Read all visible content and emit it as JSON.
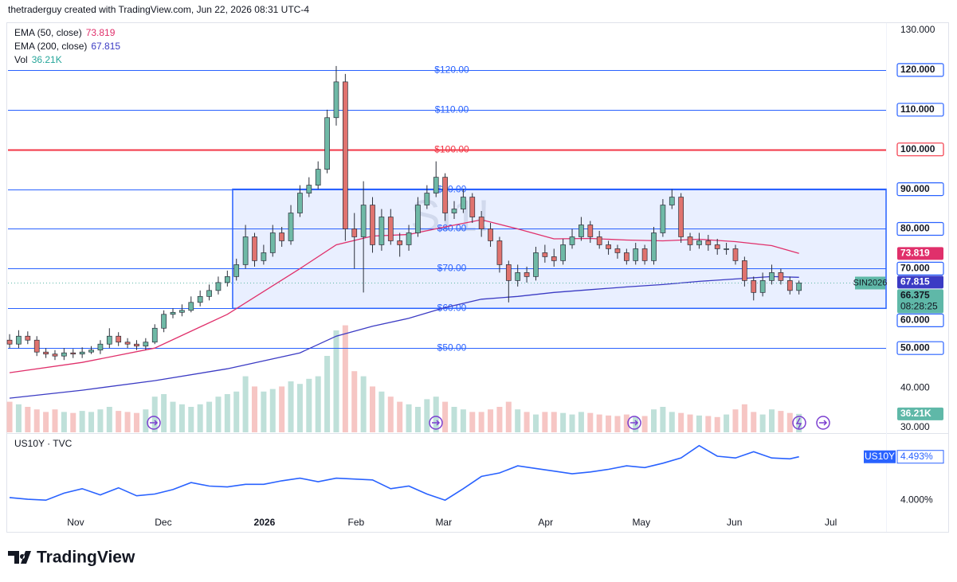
{
  "header": "thetraderguy created with TradingView.com, Jun 22, 2026 08:31 UTC-4",
  "footer": {
    "brand": "TradingView"
  },
  "chart_data": [
    {
      "type": "candlestick",
      "watermark": "SI1!",
      "ticker": "SIN2026",
      "countdown": "08:28:25",
      "up_color": "#6fb9a6",
      "down_color": "#e0736f",
      "wick_color": "#2a2e39",
      "volume_up_color": "#bfe0d9",
      "volume_down_color": "#f6c6c4",
      "volume_tag_color": "#5fb8a8",
      "xlim": [
        -0.18,
        96.6
      ],
      "xticks": [
        {
          "value": 7.28,
          "label": "Nov"
        },
        {
          "value": 16.94,
          "label": "Dec"
        },
        {
          "value": 28.09,
          "label": "2026"
        },
        {
          "value": 38.19,
          "label": "Feb"
        },
        {
          "value": 47.84,
          "label": "Mar"
        },
        {
          "value": 59.08,
          "label": "Apr"
        },
        {
          "value": 69.62,
          "label": "May"
        },
        {
          "value": 79.89,
          "label": "Jun"
        },
        {
          "value": 90.51,
          "label": "Jul"
        }
      ],
      "ylim": [
        28.8,
        131.8
      ],
      "yticks": [
        {
          "value": 130,
          "label": "130.000"
        },
        {
          "value": 120,
          "label": "120.000"
        },
        {
          "value": 110,
          "label": "110.000"
        },
        {
          "value": 100,
          "label": "100.000"
        },
        {
          "value": 90,
          "label": "90.000"
        },
        {
          "value": 80,
          "label": "80.000"
        },
        {
          "value": 70,
          "label": "70.000"
        },
        {
          "value": 60,
          "label": "60.000"
        },
        {
          "value": 50,
          "label": "50.000"
        },
        {
          "value": 40,
          "label": "40.000"
        },
        {
          "value": 30,
          "label": "30.000"
        }
      ],
      "grid": false,
      "hlines": [
        {
          "value": 120,
          "label": "$120.00",
          "color": "#2962ff"
        },
        {
          "value": 110,
          "label": "$110.00",
          "color": "#2962ff"
        },
        {
          "value": 100,
          "label": "$100.00",
          "color": "#f23645"
        },
        {
          "value": 90,
          "label": "$90.00",
          "color": "#2962ff"
        },
        {
          "value": 80,
          "label": "$80.00",
          "color": "#2962ff"
        },
        {
          "value": 70,
          "label": "$70.00",
          "color": "#2962ff"
        },
        {
          "value": 60,
          "label": "$60.00",
          "color": "#2962ff"
        },
        {
          "value": 50,
          "label": "$50.00",
          "color": "#2962ff"
        }
      ],
      "box": {
        "x": [
          24.58,
          96.6
        ],
        "y": [
          60,
          90
        ],
        "color": "#2962ff"
      },
      "open": [
        52,
        51,
        53,
        52,
        49,
        48.5,
        48,
        48.8,
        48.5,
        49,
        49.5,
        51,
        53,
        51.5,
        51,
        50.5,
        51.5,
        55,
        58.5,
        59,
        59.5,
        61.5,
        63,
        64.5,
        66.5,
        68,
        71,
        78,
        72,
        74,
        79,
        77,
        84,
        89,
        91,
        95,
        108,
        117,
        80,
        78,
        86,
        76,
        83,
        77,
        76,
        79,
        86,
        89,
        93,
        84,
        85,
        88,
        83,
        80,
        77,
        71,
        67,
        69,
        68,
        74,
        73,
        72,
        76,
        78,
        81,
        78,
        76,
        75,
        74,
        72,
        75,
        72,
        79,
        86,
        88,
        78,
        76,
        77,
        76,
        75,
        75,
        72,
        67,
        64,
        67,
        69,
        67,
        64.5
      ],
      "high": [
        53.5,
        54.5,
        54.2,
        53,
        50,
        49.5,
        50,
        49.8,
        50.2,
        50.5,
        52,
        55,
        54,
        52.5,
        52,
        52.5,
        56,
        59.5,
        60,
        61,
        63,
        64.5,
        66,
        68,
        69.5,
        72.5,
        81,
        79,
        76,
        81,
        80.5,
        86,
        91,
        93,
        97,
        110,
        121,
        119,
        84,
        92,
        88,
        85,
        85,
        79,
        81,
        88,
        91,
        97,
        94,
        87,
        90,
        89,
        84.5,
        81.5,
        78,
        72,
        71,
        70.5,
        75.5,
        76,
        75,
        77.5,
        80,
        83,
        82,
        79.5,
        77,
        76,
        75,
        76.5,
        76,
        80.5,
        87.5,
        90,
        89,
        79,
        79,
        78.5,
        77.5,
        76.5,
        76,
        73,
        68,
        69,
        71,
        70,
        68,
        67
      ],
      "low": [
        50,
        50,
        51,
        48,
        47.5,
        47,
        47,
        47.5,
        47.5,
        48.5,
        48.5,
        50,
        50.5,
        50,
        49.5,
        49.5,
        51,
        54,
        57.5,
        58,
        59,
        60.5,
        62,
        63.5,
        65.5,
        67,
        70,
        70.5,
        71,
        73,
        75.5,
        76,
        83,
        88,
        90,
        94,
        106,
        77,
        70,
        64,
        74,
        74.5,
        76,
        73,
        74.5,
        78,
        85,
        88,
        82,
        82.5,
        84,
        81.5,
        78,
        75.5,
        69,
        61.5,
        65.5,
        66.5,
        67,
        71.5,
        70.5,
        71,
        75,
        77,
        76.5,
        75,
        73.5,
        72.5,
        71,
        71,
        71,
        71,
        78,
        85,
        76.5,
        74.5,
        75,
        74.5,
        73.5,
        73.5,
        71,
        65.5,
        62,
        63,
        66,
        66,
        63.5,
        63.5
      ],
      "close": [
        51,
        53,
        52,
        49,
        48.5,
        48,
        48.8,
        48.5,
        49,
        49.5,
        51,
        53,
        51.5,
        51,
        50.5,
        51.5,
        55,
        58.5,
        59,
        59.5,
        61.5,
        63,
        64.5,
        66.5,
        68,
        71,
        78,
        72,
        74,
        79,
        77,
        84,
        89,
        91,
        95,
        108,
        117,
        80,
        78,
        86,
        76,
        83,
        77,
        76,
        79,
        86,
        89,
        93,
        84,
        85,
        88,
        83,
        80,
        77,
        71,
        67,
        69,
        68,
        74,
        73,
        72,
        76,
        78,
        81,
        78,
        76,
        75,
        74,
        72,
        75,
        72,
        79,
        86,
        88,
        78,
        76,
        77,
        76,
        75,
        75,
        72,
        67,
        64,
        67,
        69,
        67,
        64.5,
        66.375
      ],
      "volume_name": "Vol",
      "volume": [
        60,
        55,
        50,
        45,
        40,
        45,
        40,
        38,
        42,
        40,
        45,
        50,
        42,
        40,
        38,
        45,
        70,
        75,
        60,
        55,
        50,
        55,
        60,
        70,
        75,
        80,
        110,
        90,
        80,
        85,
        90,
        100,
        95,
        105,
        110,
        150,
        200,
        210,
        120,
        110,
        90,
        80,
        70,
        60,
        55,
        50,
        65,
        70,
        60,
        50,
        45,
        40,
        40,
        45,
        50,
        60,
        45,
        40,
        35,
        40,
        40,
        38,
        35,
        40,
        38,
        35,
        33,
        32,
        35,
        30,
        32,
        45,
        50,
        40,
        38,
        35,
        33,
        32,
        30,
        35,
        45,
        55,
        40,
        35,
        45,
        42,
        38,
        36.21
      ],
      "volume_value_label": "36.21K",
      "series": [
        {
          "name": "EMA (50, close)",
          "color": "#e0306b",
          "x": [
            0,
            8,
            16,
            24,
            32,
            36,
            40,
            44,
            48,
            52,
            56,
            60,
            64,
            68,
            72,
            76,
            80,
            84,
            87
          ],
          "values": [
            43.8,
            46.4,
            50,
            58.5,
            70,
            76,
            78.2,
            78.6,
            80.5,
            82.3,
            80,
            77.5,
            77.6,
            77.2,
            77,
            77.4,
            76.8,
            75.8,
            73.819
          ]
        },
        {
          "name": "EMA (200, close)",
          "color": "#3b3bc4",
          "x": [
            0,
            8,
            16,
            24,
            32,
            36,
            40,
            44,
            48,
            52,
            56,
            60,
            64,
            68,
            72,
            76,
            80,
            84,
            87
          ],
          "values": [
            37.4,
            39.4,
            41.8,
            44.8,
            48.8,
            53,
            55.5,
            57.5,
            60.2,
            62.3,
            63,
            64,
            64.7,
            65.4,
            66,
            66.8,
            67.4,
            68,
            67.815
          ]
        }
      ]
    },
    {
      "type": "line",
      "title": "US10Y · TVC",
      "xlim": [
        -0.18,
        96.6
      ],
      "ylim": [
        3.848,
        4.744
      ],
      "yticks": [
        {
          "value": 4,
          "label": "4.000%"
        }
      ],
      "series": [
        {
          "name": "US10Y",
          "color": "#2962ff",
          "x": [
            0,
            2,
            4,
            6,
            8,
            10,
            12,
            14,
            16,
            18,
            20,
            22,
            24,
            26,
            28,
            30,
            32,
            34,
            36,
            38,
            40,
            42,
            44,
            46,
            48,
            50,
            52,
            54,
            56,
            58,
            60,
            62,
            64,
            66,
            68,
            70,
            72,
            74,
            76,
            78,
            80,
            82,
            84,
            86,
            87
          ],
          "values": [
            4.03,
            4.01,
            4.0,
            4.08,
            4.13,
            4.06,
            4.14,
            4.05,
            4.07,
            4.12,
            4.2,
            4.16,
            4.15,
            4.18,
            4.18,
            4.22,
            4.25,
            4.21,
            4.25,
            4.24,
            4.23,
            4.13,
            4.16,
            4.07,
            4.0,
            4.13,
            4.27,
            4.31,
            4.39,
            4.36,
            4.33,
            4.3,
            4.32,
            4.35,
            4.39,
            4.37,
            4.42,
            4.48,
            4.62,
            4.5,
            4.48,
            4.55,
            4.48,
            4.47,
            4.493
          ],
          "value_label": "4.493%"
        }
      ]
    }
  ]
}
